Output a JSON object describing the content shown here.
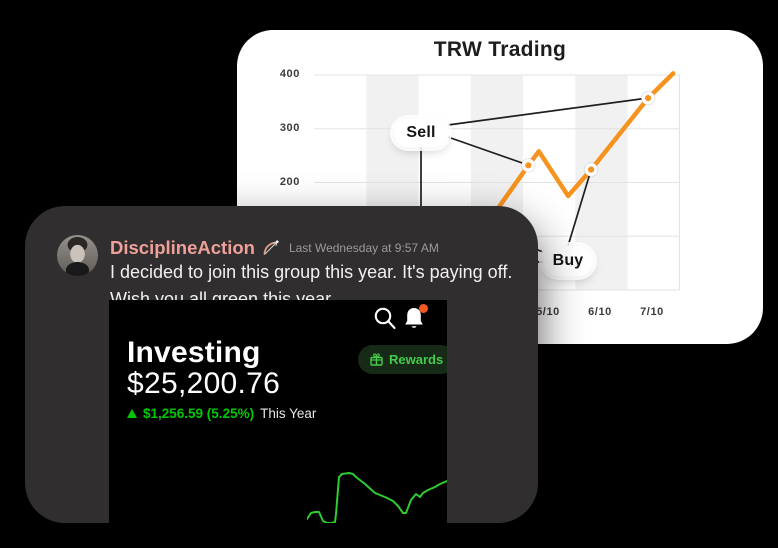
{
  "page": {
    "background": "#000000"
  },
  "trw_chart": {
    "title": "TRW Trading",
    "y_ticks": [
      "400",
      "300",
      "200"
    ],
    "x_ticks": [
      "5/10",
      "6/10",
      "7/10"
    ],
    "sell_label": "Sell",
    "buy_label": "Buy",
    "line_color": "#f6921e"
  },
  "message": {
    "username": "DisciplineAction",
    "emoji": "bow-and-arrow",
    "timestamp": "Last Wednesday at 9:57 AM",
    "line1": "I decided to join this group this year. It's paying off.",
    "line2": "Wish you all green this year."
  },
  "investing_app": {
    "section_title": "Investing",
    "balance": "$25,200.76",
    "gain": "$1,256.59 (5.25%)",
    "gain_period": "This Year",
    "rewards_label": "Rewards",
    "accent_green": "#00c805",
    "notification_dot_color": "#f05a22"
  },
  "chart_data": [
    {
      "type": "line",
      "title": "TRW Trading",
      "xlabel": "",
      "ylabel": "",
      "ylim": [
        0,
        400
      ],
      "y_ticks_visible": [
        400,
        300,
        200
      ],
      "x_ticks_visible": [
        "5/10",
        "6/10",
        "7/10"
      ],
      "x_unit_note": "x is in month-column units; tick label m/10 sits at x = m - 0.5; columns 1-4 are hidden behind the foreground card",
      "grid": "horizontal lines every 100; alternating vertical column stripes",
      "stripe_colors": [
        "#ffffff",
        "#f1f1f1"
      ],
      "series": [
        {
          "name": "price",
          "color": "#f6921e",
          "points": [
            [
              2.98,
              120
            ],
            [
              3.52,
              152
            ],
            [
              4.1,
              232
            ],
            [
              4.3,
              258
            ],
            [
              4.86,
              175
            ],
            [
              5.3,
              224
            ],
            [
              6.39,
              357
            ],
            [
              6.87,
              403
            ]
          ]
        }
      ],
      "markers": [
        [
          4.1,
          232
        ],
        [
          5.3,
          224
        ],
        [
          6.39,
          357
        ]
      ],
      "annotations": [
        {
          "label": "Sell",
          "points_to": [
            [
              6.39,
              357
            ],
            [
              4.1,
              232
            ]
          ]
        },
        {
          "label": "Buy",
          "points_to": [
            [
              5.3,
              224
            ]
          ]
        }
      ]
    },
    {
      "type": "line",
      "title": "portfolio sparkline (This Year)",
      "color": "#2fcb2f",
      "axes": "none",
      "points_box_140x52": [
        [
          0,
          48
        ],
        [
          4,
          42
        ],
        [
          8,
          41
        ],
        [
          12,
          41
        ],
        [
          16,
          50
        ],
        [
          20,
          52
        ],
        [
          25,
          52
        ],
        [
          28,
          51
        ],
        [
          29,
          43
        ],
        [
          32,
          6
        ],
        [
          35,
          3
        ],
        [
          42,
          2
        ],
        [
          46,
          3
        ],
        [
          49,
          6
        ],
        [
          58,
          13
        ],
        [
          68,
          22
        ],
        [
          78,
          26
        ],
        [
          86,
          30
        ],
        [
          91,
          35
        ],
        [
          96,
          42
        ],
        [
          99,
          42
        ],
        [
          104,
          29
        ],
        [
          109,
          23
        ],
        [
          113,
          26
        ],
        [
          116,
          22
        ],
        [
          121,
          19
        ],
        [
          128,
          16
        ],
        [
          133,
          13
        ],
        [
          140,
          10
        ]
      ]
    }
  ]
}
